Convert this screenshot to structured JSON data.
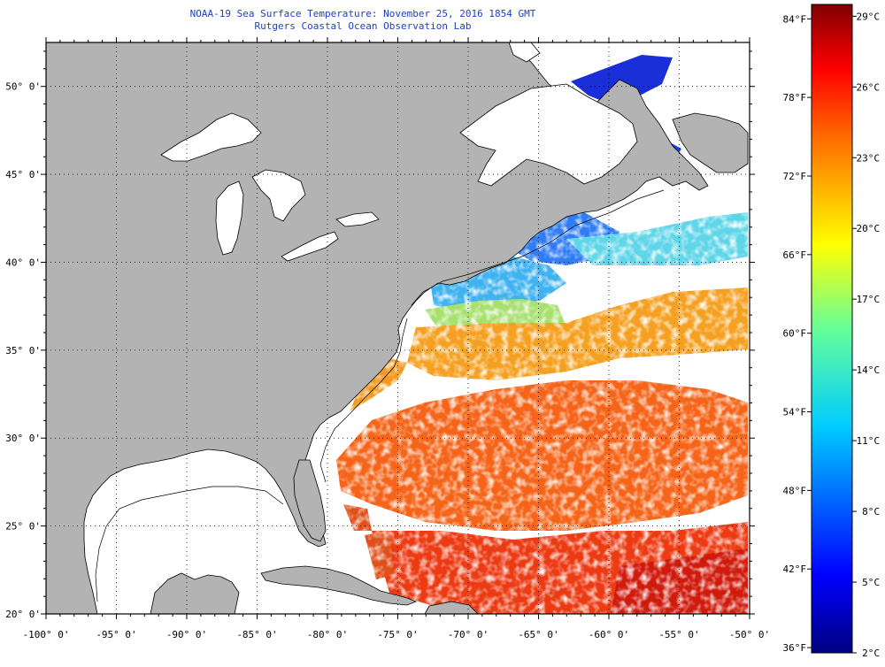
{
  "header": {
    "title": "NOAA-19 Sea Surface Temperature:  November 25, 2016 1854 GMT",
    "subtitle": "Rutgers Coastal Ocean Observation Lab"
  },
  "map": {
    "lon_range": [
      -100,
      -50
    ],
    "lat_range": [
      20,
      52.5
    ],
    "lon_ticks": [
      "-100° 0'",
      "-95° 0'",
      "-90° 0'",
      "-85° 0'",
      "-80° 0'",
      "-75° 0'",
      "-70° 0'",
      "-65° 0'",
      "-60° 0'",
      "-55° 0'",
      "-50° 0'"
    ],
    "lat_ticks": [
      "20° 0'",
      "25° 0'",
      "30° 0'",
      "35° 0'",
      "40° 0'",
      "45° 0'",
      "50° 0'"
    ],
    "land_color": "#b3b3b3",
    "nodata_color": "#ffffff"
  },
  "colorbar": {
    "fahrenheit_labels": [
      "84°F",
      "78°F",
      "72°F",
      "66°F",
      "60°F",
      "54°F",
      "48°F",
      "42°F",
      "36°F"
    ],
    "celsius_labels": [
      "29°C",
      "26°C",
      "23°C",
      "20°C",
      "17°C",
      "14°C",
      "11°C",
      "8°C",
      "5°C",
      "2°C"
    ],
    "range_c": [
      2,
      29.5
    ]
  }
}
